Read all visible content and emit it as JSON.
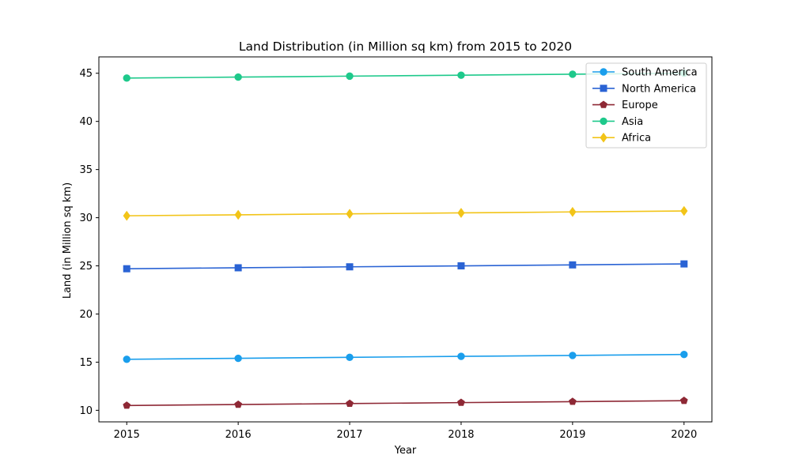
{
  "chart_data": {
    "type": "line",
    "title": "Land Distribution (in Million sq km) from 2015 to 2020",
    "xlabel": "Year",
    "ylabel": "Land (in Million sq km)",
    "x": [
      2015,
      2016,
      2017,
      2018,
      2019,
      2020
    ],
    "x_tick_labels": [
      "2015",
      "2016",
      "2017",
      "2018",
      "2019",
      "2020"
    ],
    "y_ticks": [
      10,
      15,
      20,
      25,
      30,
      35,
      40,
      45
    ],
    "y_tick_labels": [
      "10",
      "15",
      "20",
      "25",
      "30",
      "35",
      "40",
      "45"
    ],
    "ylim": [
      8.8,
      46.7
    ],
    "grid": false,
    "legend_position": "top-right",
    "series": [
      {
        "name": "South America",
        "marker": "circle",
        "color": "#1a9eec",
        "values": [
          15.3,
          15.4,
          15.5,
          15.6,
          15.7,
          15.8
        ]
      },
      {
        "name": "North America",
        "marker": "square",
        "color": "#2a63d4",
        "values": [
          24.7,
          24.8,
          24.9,
          25.0,
          25.1,
          25.2
        ]
      },
      {
        "name": "Europe",
        "marker": "pentagon",
        "color": "#8e2835",
        "values": [
          10.5,
          10.6,
          10.7,
          10.8,
          10.9,
          11.0
        ]
      },
      {
        "name": "Asia",
        "marker": "circle",
        "color": "#1ec98b",
        "values": [
          44.5,
          44.6,
          44.7,
          44.8,
          44.9,
          45.0
        ]
      },
      {
        "name": "Africa",
        "marker": "diamond",
        "color": "#f2c418",
        "values": [
          30.2,
          30.3,
          30.4,
          30.5,
          30.6,
          30.7
        ]
      }
    ]
  }
}
